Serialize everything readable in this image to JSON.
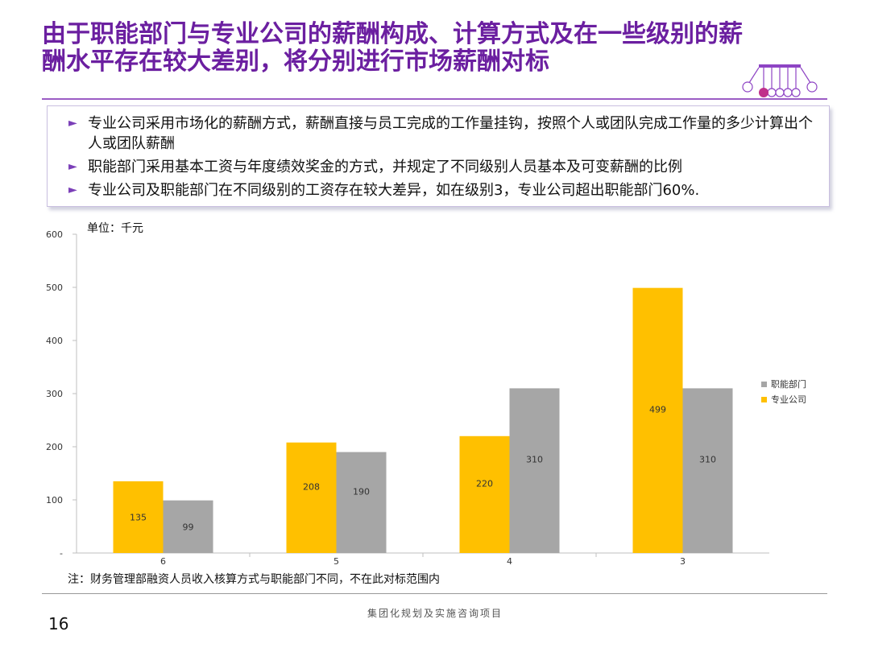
{
  "slide": {
    "title": "由于职能部门与专业公司的薪酬构成、计算方式及在一些级别的薪酬水平存在较大差别，将分别进行市场薪酬对标",
    "bullets": [
      "专业公司采用市场化的薪酬方式，薪酬直接与员工完成的工作量挂钩，按照个人或团队完成工作量的多少计算出个人或团队薪酬",
      "职能部门采用基本工资与年度绩效奖金的方式，并规定了不同级别人员基本及可变薪酬的比例",
      "专业公司及职能部门在不同级别的工资存在较大差异，如在级别3，专业公司超出职能部门60%."
    ],
    "note": "注：财务管理部融资人员收入核算方式与职能部门不同，不在此对标范围内",
    "footer": "集团化规划及实施咨询项目",
    "page_number": "16",
    "accent_color": "#6b1fa0"
  },
  "chart_data": {
    "type": "bar",
    "unit_label": "单位：千元",
    "categories": [
      "6",
      "5",
      "4",
      "3"
    ],
    "series": [
      {
        "name": "专业公司",
        "color": "#ffc000",
        "values": [
          135,
          208,
          220,
          499
        ]
      },
      {
        "name": "职能部门",
        "color": "#a6a6a6",
        "values": [
          99,
          190,
          310,
          310
        ]
      }
    ],
    "legend_order": [
      "职能部门",
      "专业公司"
    ],
    "ylim": [
      0,
      600
    ],
    "yticks": [
      "-",
      "100",
      "200",
      "300",
      "400",
      "500",
      "600"
    ],
    "grid": false,
    "legend_position": "right"
  }
}
